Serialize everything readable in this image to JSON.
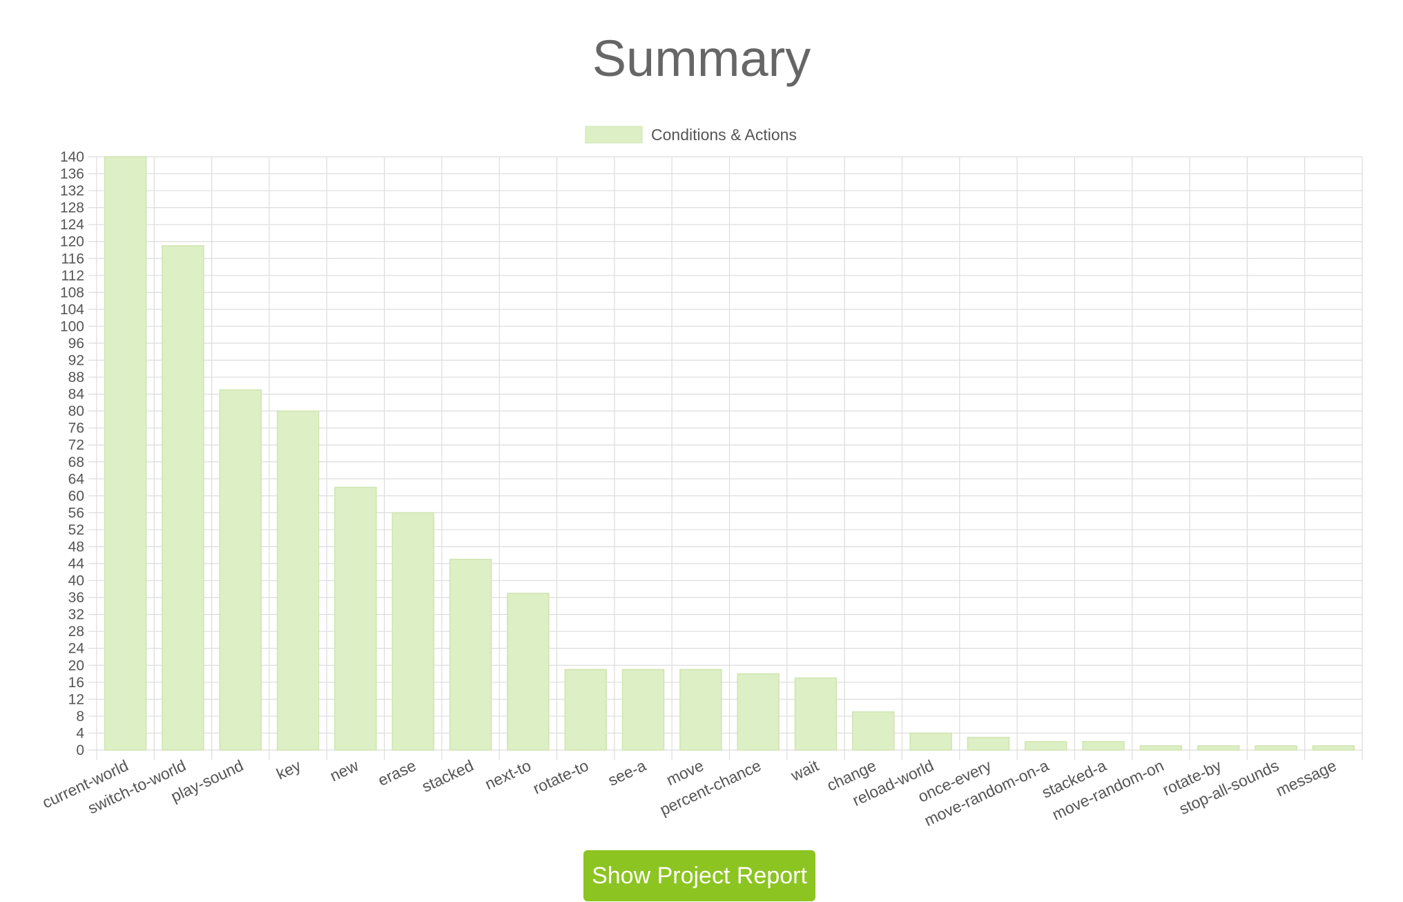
{
  "page": {
    "title": "Summary",
    "button_label": "Show Project Report"
  },
  "colors": {
    "bar_fill": "#ddefc4",
    "bar_stroke": "#cfe5b0",
    "grid": "#dcdcdc",
    "axis_text": "#555555",
    "title": "#666666",
    "button": "#8cc421",
    "button_text": "#ffffff"
  },
  "chart_data": {
    "type": "bar",
    "title": "",
    "xlabel": "",
    "ylabel": "",
    "ylim": [
      0,
      140
    ],
    "ytick_step": 4,
    "grid": true,
    "legend_position": "top-center",
    "categories": [
      "current-world",
      "switch-to-world",
      "play-sound",
      "key",
      "new",
      "erase",
      "stacked",
      "next-to",
      "rotate-to",
      "see-a",
      "move",
      "percent-chance",
      "wait",
      "change",
      "reload-world",
      "once-every",
      "move-random-on-a",
      "stacked-a",
      "move-random-on",
      "rotate-by",
      "stop-all-sounds",
      "message"
    ],
    "series": [
      {
        "name": "Conditions & Actions",
        "values": [
          140,
          119,
          85,
          80,
          62,
          56,
          45,
          37,
          19,
          19,
          19,
          18,
          17,
          9,
          4,
          3,
          2,
          2,
          1,
          1,
          1,
          1
        ]
      }
    ]
  }
}
